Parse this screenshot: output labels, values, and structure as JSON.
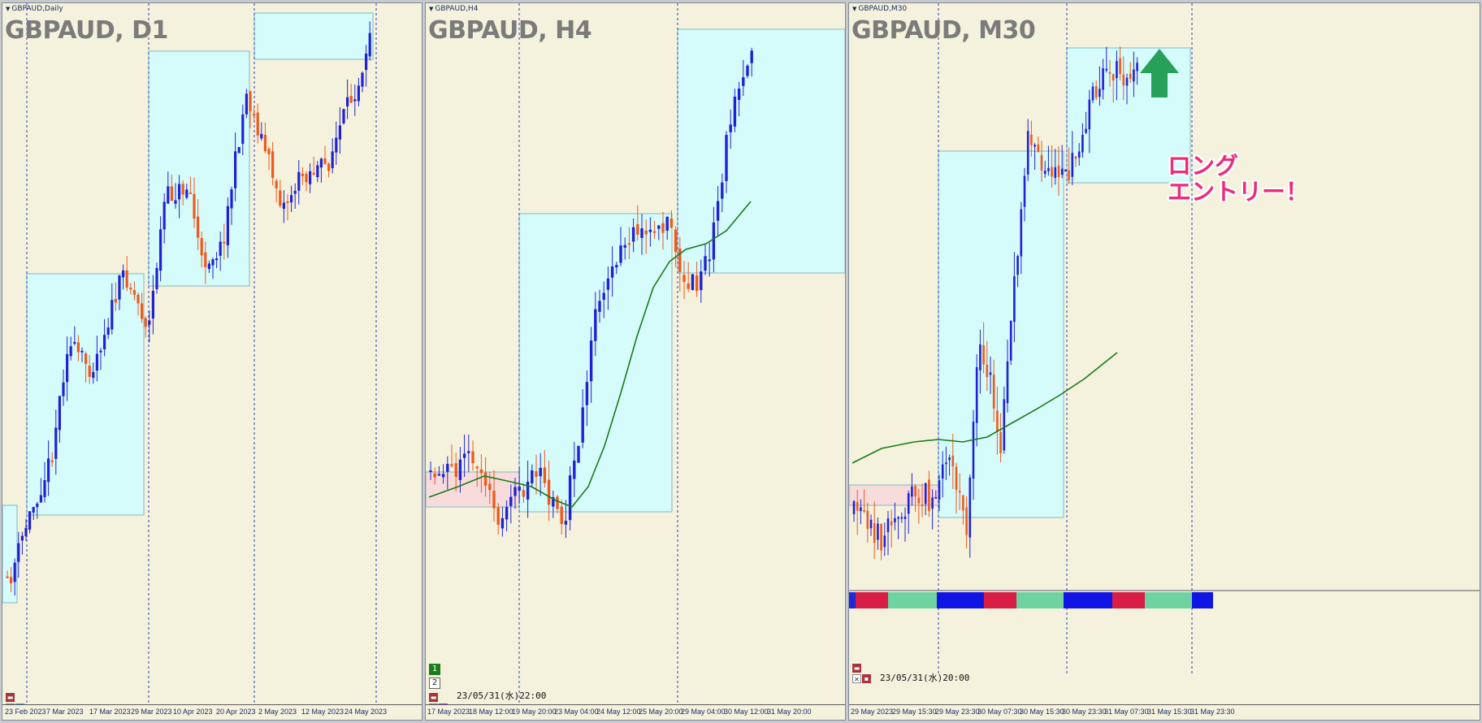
{
  "colors": {
    "bull": "#1f22d4",
    "bear": "#ee5a1c",
    "ma": "#1a7a1a",
    "box": "#d6fbfb",
    "box_border": "#7fb8c8",
    "pink": "#f8dcdc",
    "grid": "#2b3dbf",
    "arrow": "#27a15a",
    "annotation": "#ee2a7b"
  },
  "panels": [
    {
      "id": "d1",
      "mini_title": "GBPAUD,Daily",
      "title": "GBPAUD, D1",
      "x_ticks": [
        "23 Feb 2023",
        "7 Mar 2023",
        "17 Mar 2023",
        "29 Mar 2023",
        "10 Apr 2023",
        "20 Apr 2023",
        "2 May 2023",
        "12 May 2023",
        "24 May 2023"
      ]
    },
    {
      "id": "h4",
      "mini_title": "GBPAUD,H4",
      "title": "GBPAUD, H4",
      "x_ticks": [
        "17 May 2023",
        "18 May 12:00",
        "19 May 20:00",
        "23 May 04:00",
        "24 May 12:00",
        "25 May 20:00",
        "29 May 04:00",
        "30 May 12:00",
        "31 May 20:00"
      ],
      "timestamp": "23/05/31(水)22:00",
      "buttons": [
        "1",
        "2"
      ]
    },
    {
      "id": "m30",
      "mini_title": "GBPAUD,M30",
      "title": "GBPAUD, M30",
      "x_ticks": [
        "29 May 2023",
        "29 May 15:30",
        "29 May 23:30",
        "30 May 07:30",
        "30 May 15:30",
        "30 May 23:30",
        "31 May 07:30",
        "31 May 15:30",
        "31 May 23:30"
      ],
      "timestamp": "23/05/31(水)20:00",
      "annotation_line1": "ロング",
      "annotation_line2": "エントリー！"
    }
  ],
  "chart_data": [
    {
      "type": "candlestick",
      "title": "GBPAUD, D1",
      "symbol": "GBPAUD",
      "timeframe": "Daily",
      "categories": [
        "23 Feb 2023",
        "7 Mar 2023",
        "17 Mar 2023",
        "29 Mar 2023",
        "10 Apr 2023",
        "20 Apr 2023",
        "2 May 2023",
        "12 May 2023",
        "24 May 2023"
      ],
      "trend": "uptrend",
      "zones": [
        "consolidation box Feb-Mar",
        "box Mar-Apr",
        "box May (upper)"
      ]
    },
    {
      "type": "candlestick",
      "title": "GBPAUD, H4",
      "symbol": "GBPAUD",
      "timeframe": "H4",
      "categories": [
        "17 May 2023",
        "18 May 12:00",
        "19 May 20:00",
        "23 May 04:00",
        "24 May 12:00",
        "25 May 20:00",
        "29 May 04:00",
        "30 May 12:00",
        "31 May 20:00"
      ],
      "series": [
        {
          "name": "candles"
        },
        {
          "name": "moving average"
        }
      ]
    },
    {
      "type": "candlestick",
      "title": "GBPAUD, M30",
      "symbol": "GBPAUD",
      "timeframe": "M30",
      "categories": [
        "29 May 2023",
        "29 May 15:30",
        "29 May 23:30",
        "30 May 07:30",
        "30 May 15:30",
        "30 May 23:30",
        "31 May 07:30",
        "31 May 15:30",
        "31 May 23:30"
      ],
      "series": [
        {
          "name": "candles"
        },
        {
          "name": "moving average"
        }
      ],
      "annotations": [
        "ロング",
        "エントリー！"
      ],
      "signal": "long entry (up arrow)"
    }
  ]
}
